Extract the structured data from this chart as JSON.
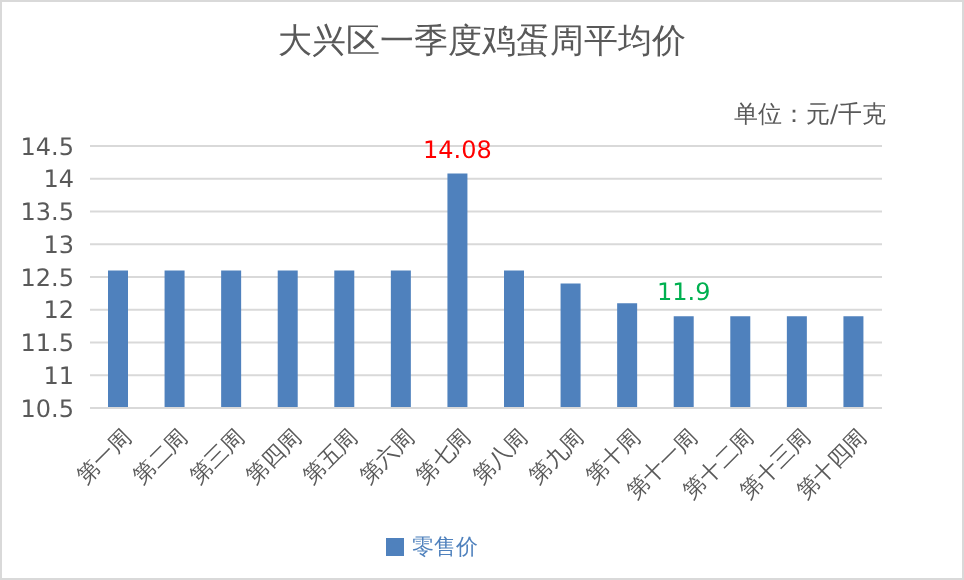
{
  "chart_data": {
    "type": "bar",
    "title": "大兴区一季度鸡蛋周平均价",
    "subtitle": "单位：元/千克",
    "categories": [
      "第一周",
      "第二周",
      "第三周",
      "第四周",
      "第五周",
      "第六周",
      "第七周",
      "第八周",
      "第九周",
      "第十周",
      "第十一周",
      "第十二周",
      "第十三周",
      "第十四周"
    ],
    "series": [
      {
        "name": "零售价",
        "color": "#4f81bd",
        "values": [
          12.6,
          12.6,
          12.6,
          12.6,
          12.6,
          12.6,
          14.08,
          12.6,
          12.4,
          12.1,
          11.9,
          11.9,
          11.9,
          11.9
        ],
        "value_labels": [
          null,
          null,
          null,
          null,
          null,
          null,
          "14.08",
          null,
          null,
          null,
          "11.9",
          null,
          null,
          null
        ]
      }
    ],
    "ylim": [
      10.5,
      14.5
    ],
    "yticks": [
      10.5,
      11,
      11.5,
      12,
      12.5,
      13,
      13.5,
      14,
      14.5
    ],
    "grid": "y",
    "legend": "bottom"
  }
}
